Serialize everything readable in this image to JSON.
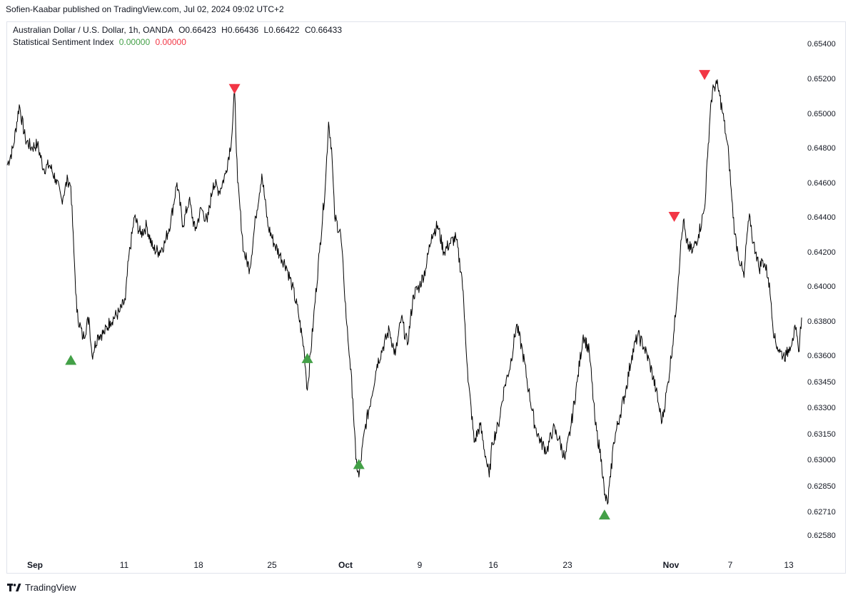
{
  "publisher_line": "Sofien-Kaabar published on TradingView.com, Jul 02, 2024 09:02 UTC+2",
  "legend": {
    "symbol": "Australian Dollar / U.S. Dollar, 1h, OANDA",
    "open": "O0.66423",
    "high": "H0.66436",
    "low": "L0.66422",
    "close": "C0.66433",
    "indicator_name": "Statistical Sentiment Index",
    "indicator_value_1": "0.00000",
    "indicator_value_2": "0.00000"
  },
  "footer": {
    "brand": "TradingView",
    "logo_icon": "tradingview-logo-icon"
  },
  "colors": {
    "line": "#000000",
    "buy": "#43a047",
    "sell": "#f23645",
    "axis_text": "#131722",
    "border": "#e0e3eb"
  },
  "chart_data": {
    "type": "line",
    "y_axis_ticks": [
      "0.65400",
      "0.65200",
      "0.65000",
      "0.64800",
      "0.64600",
      "0.64400",
      "0.64200",
      "0.64000",
      "0.63800",
      "0.63600",
      "0.63450",
      "0.63300",
      "0.63150",
      "0.63000",
      "0.62850",
      "0.62710",
      "0.62580"
    ],
    "x_axis_ticks": [
      "Sep",
      "11",
      "18",
      "25",
      "Oct",
      "9",
      "16",
      "23",
      "Nov",
      "7",
      "13"
    ],
    "grid": false,
    "series": [
      {
        "points": [
          [
            0,
            0.647
          ],
          [
            2,
            0.648
          ],
          [
            4,
            0.6505
          ],
          [
            6,
            0.6485
          ],
          [
            8,
            0.648
          ],
          [
            10,
            0.6482
          ],
          [
            12,
            0.6468
          ],
          [
            14,
            0.647
          ],
          [
            16,
            0.6462
          ],
          [
            18,
            0.645
          ],
          [
            20,
            0.6462
          ],
          [
            21,
            0.6458
          ],
          [
            22,
            0.642
          ],
          [
            23,
            0.6385
          ],
          [
            25,
            0.637
          ],
          [
            27,
            0.6382
          ],
          [
            28,
            0.636
          ],
          [
            30,
            0.6372
          ],
          [
            32,
            0.6373
          ],
          [
            34,
            0.638
          ],
          [
            37,
            0.6385
          ],
          [
            39,
            0.6392
          ],
          [
            40,
            0.6415
          ],
          [
            42,
            0.644
          ],
          [
            44,
            0.643
          ],
          [
            46,
            0.6435
          ],
          [
            48,
            0.6422
          ],
          [
            50,
            0.642
          ],
          [
            52,
            0.6425
          ],
          [
            54,
            0.6438
          ],
          [
            56,
            0.646
          ],
          [
            58,
            0.6435
          ],
          [
            60,
            0.645
          ],
          [
            62,
            0.6432
          ],
          [
            64,
            0.6445
          ],
          [
            66,
            0.6437
          ],
          [
            68,
            0.646
          ],
          [
            70,
            0.6455
          ],
          [
            72,
            0.6465
          ],
          [
            74,
            0.6485
          ],
          [
            75,
            0.6513
          ],
          [
            76,
            0.646
          ],
          [
            78,
            0.642
          ],
          [
            80,
            0.641
          ],
          [
            82,
            0.644
          ],
          [
            84,
            0.6465
          ],
          [
            86,
            0.6435
          ],
          [
            88,
            0.6425
          ],
          [
            90,
            0.6418
          ],
          [
            92,
            0.6412
          ],
          [
            94,
            0.64
          ],
          [
            96,
            0.6385
          ],
          [
            98,
            0.6362
          ],
          [
            99,
            0.634
          ],
          [
            101,
            0.638
          ],
          [
            103,
            0.642
          ],
          [
            105,
            0.646
          ],
          [
            106,
            0.6495
          ],
          [
            107,
            0.648
          ],
          [
            108,
            0.644
          ],
          [
            110,
            0.643
          ],
          [
            111,
            0.6405
          ],
          [
            112,
            0.6378
          ],
          [
            113,
            0.6358
          ],
          [
            114,
            0.6335
          ],
          [
            115,
            0.63
          ],
          [
            116,
            0.629
          ],
          [
            118,
            0.6318
          ],
          [
            120,
            0.6335
          ],
          [
            122,
            0.6355
          ],
          [
            124,
            0.6365
          ],
          [
            126,
            0.6375
          ],
          [
            128,
            0.636
          ],
          [
            130,
            0.6382
          ],
          [
            132,
            0.6366
          ],
          [
            134,
            0.6395
          ],
          [
            136,
            0.64
          ],
          [
            138,
            0.641
          ],
          [
            140,
            0.643
          ],
          [
            142,
            0.6435
          ],
          [
            144,
            0.642
          ],
          [
            146,
            0.6425
          ],
          [
            148,
            0.6428
          ],
          [
            150,
            0.6405
          ],
          [
            151,
            0.6378
          ],
          [
            152,
            0.6345
          ],
          [
            153,
            0.633
          ],
          [
            154,
            0.631
          ],
          [
            156,
            0.632
          ],
          [
            158,
            0.63
          ],
          [
            159,
            0.629
          ],
          [
            160,
            0.631
          ],
          [
            162,
            0.632
          ],
          [
            164,
            0.6342
          ],
          [
            166,
            0.6355
          ],
          [
            168,
            0.6378
          ],
          [
            170,
            0.6362
          ],
          [
            172,
            0.634
          ],
          [
            174,
            0.632
          ],
          [
            176,
            0.631
          ],
          [
            178,
            0.6305
          ],
          [
            180,
            0.6318
          ],
          [
            182,
            0.6312
          ],
          [
            184,
            0.63
          ],
          [
            186,
            0.632
          ],
          [
            188,
            0.6345
          ],
          [
            190,
            0.6372
          ],
          [
            192,
            0.6362
          ],
          [
            194,
            0.632
          ],
          [
            196,
            0.63
          ],
          [
            197,
            0.628
          ],
          [
            198,
            0.6275
          ],
          [
            199,
            0.629
          ],
          [
            200,
            0.631
          ],
          [
            202,
            0.6325
          ],
          [
            204,
            0.634
          ],
          [
            206,
            0.636
          ],
          [
            208,
            0.6372
          ],
          [
            210,
            0.6365
          ],
          [
            212,
            0.6355
          ],
          [
            214,
            0.634
          ],
          [
            215,
            0.633
          ],
          [
            216,
            0.6322
          ],
          [
            218,
            0.6345
          ],
          [
            220,
            0.6375
          ],
          [
            222,
            0.642
          ],
          [
            223,
            0.6438
          ],
          [
            224,
            0.6425
          ],
          [
            226,
            0.642
          ],
          [
            228,
            0.643
          ],
          [
            230,
            0.6445
          ],
          [
            231,
            0.6475
          ],
          [
            232,
            0.6505
          ],
          [
            233,
            0.6515
          ],
          [
            234,
            0.6517
          ],
          [
            235,
            0.651
          ],
          [
            236,
            0.65
          ],
          [
            237,
            0.6488
          ],
          [
            238,
            0.6475
          ],
          [
            239,
            0.645
          ],
          [
            240,
            0.643
          ],
          [
            241,
            0.642
          ],
          [
            242,
            0.6412
          ],
          [
            243,
            0.6405
          ],
          [
            244,
            0.643
          ],
          [
            245,
            0.644
          ],
          [
            246,
            0.6425
          ],
          [
            247,
            0.642
          ],
          [
            248,
            0.641
          ],
          [
            249,
            0.6415
          ],
          [
            250,
            0.6412
          ],
          [
            251,
            0.6405
          ],
          [
            252,
            0.639
          ],
          [
            253,
            0.637
          ],
          [
            254,
            0.6365
          ],
          [
            255,
            0.6362
          ],
          [
            256,
            0.636
          ],
          [
            257,
            0.636
          ],
          [
            258,
            0.6365
          ],
          [
            259,
            0.637
          ],
          [
            260,
            0.6375
          ],
          [
            261,
            0.6362
          ],
          [
            262,
            0.6382
          ]
        ]
      }
    ],
    "markers": [
      {
        "type": "buy",
        "x": 21,
        "y": 0.6357
      },
      {
        "type": "sell",
        "x": 75,
        "y": 0.6514
      },
      {
        "type": "buy",
        "x": 99,
        "y": 0.6358
      },
      {
        "type": "buy",
        "x": 116,
        "y": 0.6297
      },
      {
        "type": "buy",
        "x": 197,
        "y": 0.6269
      },
      {
        "type": "sell",
        "x": 220,
        "y": 0.644
      },
      {
        "type": "sell",
        "x": 230,
        "y": 0.6522
      }
    ]
  }
}
